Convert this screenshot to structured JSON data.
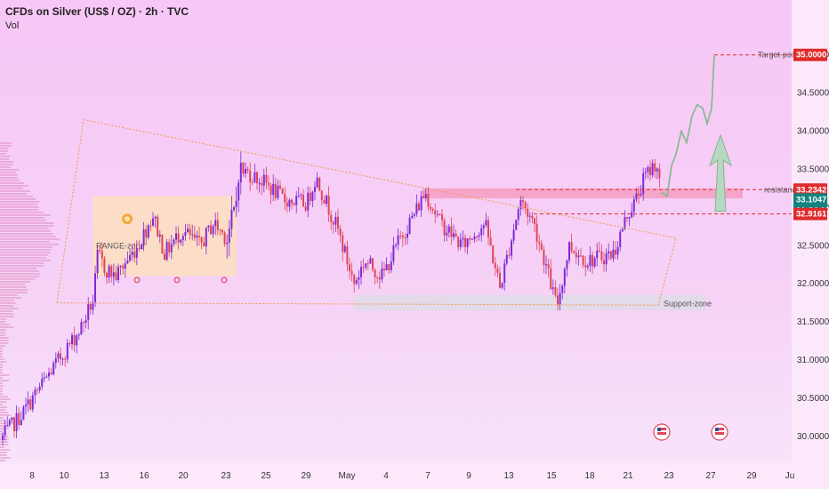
{
  "header": {
    "title": "CFDs on Silver (US$ / OZ) · 2h · TVC",
    "indicator": "Vol"
  },
  "chart_data": {
    "type": "candlestick",
    "symbol": "CFDs on Silver (US$ / OZ)",
    "interval": "2h",
    "source": "TVC",
    "ylim": [
      29.8,
      35.3
    ],
    "y_ticks": [
      "35.0000",
      "34.5000",
      "34.0000",
      "33.5000",
      "33.0000",
      "32.5000",
      "32.0000",
      "31.5000",
      "31.0000",
      "30.5000",
      "30.0000"
    ],
    "x_ticks": [
      "8",
      "10",
      "13",
      "16",
      "20",
      "23",
      "25",
      "29",
      "May",
      "4",
      "7",
      "9",
      "13",
      "15",
      "18",
      "21",
      "23",
      "27",
      "29",
      "Ju"
    ],
    "price_labels": {
      "target": "35.0000",
      "resistance": "33.2342",
      "current": "33.1047",
      "countdown": "01:34:00",
      "support_line": "32.9161"
    },
    "annotations": {
      "range_zone": "RANGE-zone",
      "support_zone": "Support-zone",
      "resistance": "resistance",
      "target_point": "Target-point"
    },
    "colors": {
      "up": "#7d2bd8",
      "down": "#e0455a",
      "trendline": "#f2994a",
      "red_line": "#e02b2b",
      "resistance_zone": "#f58fb2",
      "range_box": "#fde1b8",
      "support_box": "#dcdce6",
      "projection": "#7fb88a",
      "current_tag": "#12847f"
    }
  }
}
